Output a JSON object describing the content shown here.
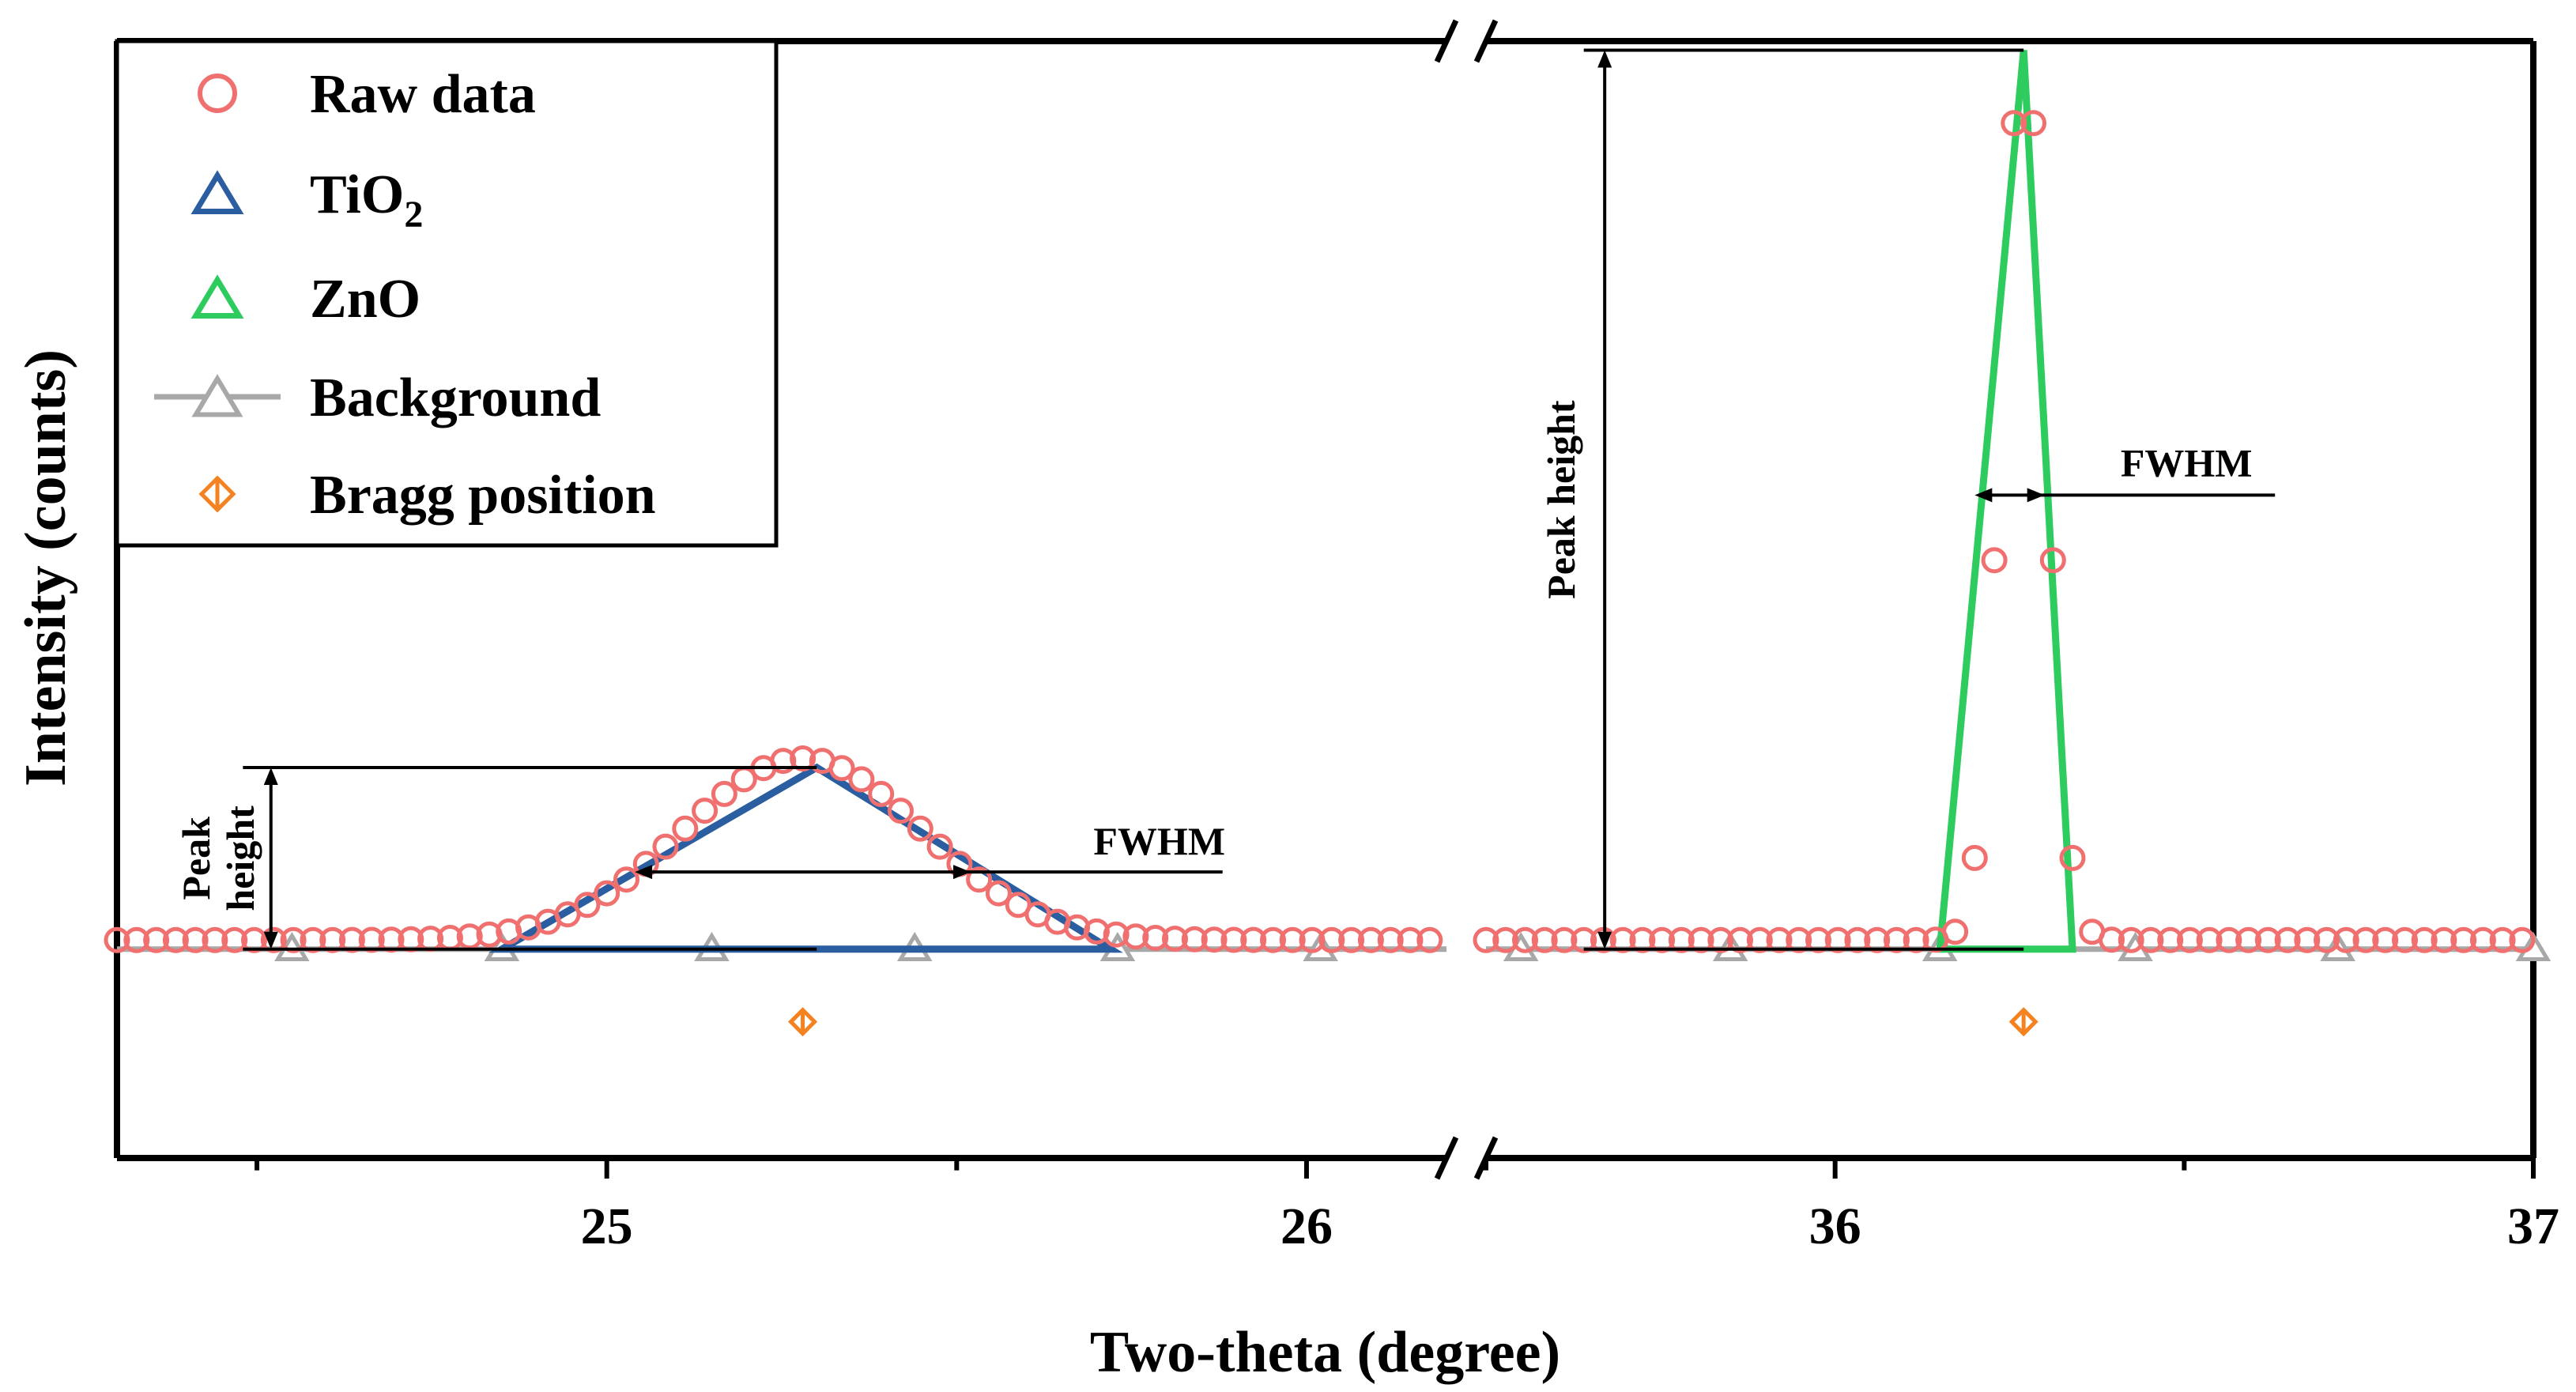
{
  "chart_data": {
    "type": "line",
    "title": "",
    "xlabel": "Two-theta (degree)",
    "ylabel": "Intensity (counts)",
    "x_break": true,
    "panels": [
      {
        "xlim": [
          24.3,
          26.2
        ],
        "ticks": [
          25,
          26
        ],
        "tick_labels": [
          "25",
          "26"
        ]
      },
      {
        "xlim": [
          35.5,
          37.0
        ],
        "ticks": [
          36,
          37
        ],
        "tick_labels": [
          "36",
          "37"
        ]
      }
    ],
    "ylim": [
      -0.23,
      1.0
    ],
    "legend": {
      "position": "top-left",
      "entries": [
        {
          "label": "Raw data",
          "marker": "circle-open",
          "color": "#f07070"
        },
        {
          "label": "TiO",
          "subscript": "2",
          "marker": "triangle-open",
          "color": "#2a5ea0"
        },
        {
          "label": "ZnO",
          "marker": "triangle-open",
          "color": "#2ecb5e"
        },
        {
          "label": "Background",
          "marker": "line-triangle-open",
          "color": "#a8a8a8"
        },
        {
          "label": "Bragg position",
          "marker": "diamond-bar",
          "color": "#f58220"
        }
      ]
    },
    "series": [
      {
        "name": "Raw data",
        "kind": "gaussian_peaks",
        "color": "#f07070",
        "baseline": 0.01,
        "step": 0.028,
        "ranges": [
          [
            24.3,
            26.2
          ],
          [
            35.5,
            37.0
          ]
        ],
        "peaks": [
          {
            "center": 25.28,
            "height": 0.2,
            "sigma": 0.17
          },
          {
            "center": 36.27,
            "height": 0.99,
            "sigma": 0.032
          }
        ]
      },
      {
        "name": "TiO2",
        "color": "#2a5ea0",
        "x": [
          24.85,
          25.3,
          25.72
        ],
        "y": [
          0.0,
          0.2,
          0.0
        ]
      },
      {
        "name": "ZnO",
        "color": "#2ecb5e",
        "x": [
          36.15,
          36.27,
          36.34
        ],
        "y": [
          0.0,
          0.99,
          0.0
        ]
      },
      {
        "name": "Background",
        "color": "#a8a8a8",
        "x": [
          24.3,
          24.55,
          24.85,
          25.15,
          25.44,
          25.73,
          26.02,
          26.2,
          35.5,
          35.55,
          35.85,
          36.15,
          36.43,
          36.72,
          37.0
        ],
        "y": [
          0.0,
          0.0,
          0.0,
          0.0,
          0.0,
          0.0,
          0.0,
          0.0,
          0.0,
          0.0,
          0.0,
          0.0,
          0.0,
          0.0,
          0.0
        ],
        "marker_x": [
          24.55,
          24.85,
          25.15,
          25.44,
          25.73,
          26.02,
          35.55,
          35.85,
          36.15,
          36.43,
          36.72,
          37.0
        ]
      },
      {
        "name": "Bragg position",
        "color": "#f58220",
        "x": [
          25.28,
          36.27
        ],
        "y": [
          -0.08,
          -0.08
        ]
      }
    ],
    "annotations": {
      "tio2": {
        "peak_x": 25.3,
        "peak_y": 0.2,
        "height_arrow_x": 24.52,
        "height_line_from_x": 24.48,
        "fwhm_left_x": 25.04,
        "fwhm_right_x": 25.52,
        "fwhm_y": 0.085,
        "fwhm_tail_x": 25.88,
        "peak_height_label": [
          "Peak",
          "height"
        ],
        "fwhm_label": "FWHM"
      },
      "zno": {
        "peak_x": 36.27,
        "peak_y": 0.99,
        "height_arrow_x": 35.67,
        "height_line_from_x": 35.64,
        "fwhm_left_x": 36.2,
        "fwhm_right_x": 36.3,
        "fwhm_y": 0.5,
        "fwhm_tail_x": 36.63,
        "peak_height_label": "Peak height",
        "fwhm_label": "FWHM"
      }
    }
  }
}
